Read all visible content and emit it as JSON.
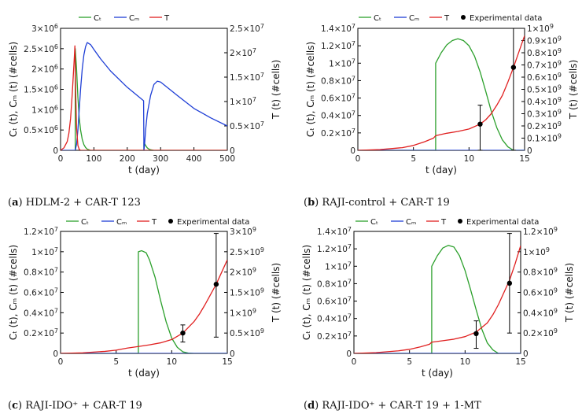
{
  "colors": {
    "ct": "#2ca02c",
    "cm": "#1f3fd6",
    "t": "#e02020",
    "exp": "#000000",
    "axis": "#000000"
  },
  "labels": {
    "xlabel": "t (day)",
    "ylabel_left": "Cₜ (t), Cₘ (t) (#cells)",
    "ylabel_right": "T (t) (#cells)"
  },
  "chart_data": [
    {
      "id": "a",
      "type": "line",
      "caption_letter": "a",
      "caption_text": "HDLM-2 + CAR-T 123",
      "xlabel": "t (day)",
      "ylabel_left": "Cₜ (t), Cₘ (t) (#cells)",
      "ylabel_right": "T (t) (#cells)",
      "xlim": [
        0,
        500
      ],
      "ylim_left": [
        0,
        3000000
      ],
      "ylim_right": [
        0,
        25000000
      ],
      "xticks": [
        0,
        100,
        200,
        300,
        400,
        500
      ],
      "xticklabels": [
        "0",
        "100",
        "200",
        "300",
        "400",
        "500"
      ],
      "yticks_left": [
        0,
        500000,
        1000000,
        1500000,
        2000000,
        2500000,
        3000000
      ],
      "yticklabels_left": [
        "0",
        "0.5×10⁶",
        "1×10⁶",
        "1.5×10⁶",
        "2×10⁶",
        "2.5×10⁶",
        "3×10⁶"
      ],
      "yticks_right": [
        0,
        5000000,
        10000000,
        15000000,
        20000000,
        25000000
      ],
      "yticklabels_right": [
        "0",
        "0.5×10⁷",
        "1×10⁷",
        "1.5×10⁷",
        "2×10⁷",
        "2.5×10⁷"
      ],
      "legend": [
        "Cₜ",
        "Cₘ",
        "T"
      ],
      "series": [
        {
          "name": "Cₜ",
          "axis": "left",
          "color": "ct",
          "x": [
            44,
            44,
            48,
            52,
            56,
            60,
            65,
            70,
            75,
            80,
            90,
            250,
            250,
            255,
            260,
            265,
            270,
            280,
            500
          ],
          "y": [
            0,
            2500000,
            2000000,
            1300000,
            800000,
            500000,
            270000,
            140000,
            70000,
            30000,
            0,
            0,
            200000,
            120000,
            60000,
            30000,
            15000,
            0,
            0
          ]
        },
        {
          "name": "Cₘ",
          "axis": "left",
          "color": "cm",
          "x": [
            0,
            44,
            48,
            52,
            56,
            60,
            65,
            70,
            75,
            80,
            90,
            100,
            120,
            150,
            200,
            249,
            250,
            252,
            255,
            260,
            270,
            280,
            290,
            300,
            350,
            400,
            450,
            500
          ],
          "y": [
            0,
            0,
            150000,
            500000,
            1000000,
            1500000,
            2000000,
            2350000,
            2550000,
            2650000,
            2600000,
            2480000,
            2250000,
            1950000,
            1550000,
            1220000,
            0,
            150000,
            500000,
            900000,
            1350000,
            1620000,
            1700000,
            1680000,
            1350000,
            1030000,
            800000,
            600000
          ]
        },
        {
          "name": "T",
          "axis": "right",
          "color": "t",
          "x": [
            0,
            10,
            20,
            25,
            30,
            35,
            40,
            42,
            43,
            45,
            48,
            52,
            56,
            60,
            70,
            500
          ],
          "y": [
            0,
            500000,
            1800000,
            3500000,
            6500000,
            11500000,
            17500000,
            20000000,
            21400000,
            13000000,
            4500000,
            1000000,
            200000,
            0,
            0,
            0
          ]
        }
      ]
    },
    {
      "id": "b",
      "type": "line",
      "caption_letter": "b",
      "caption_text": "RAJI-control + CAR-T 19",
      "xlabel": "t (day)",
      "ylabel_left": "Cₜ (t), Cₘ (t) (#cells)",
      "ylabel_right": "T (t) (#cells)",
      "xlim": [
        0,
        15
      ],
      "ylim_left": [
        0,
        14000000
      ],
      "ylim_right": [
        0,
        1000000000
      ],
      "xticks": [
        0,
        5,
        10,
        15
      ],
      "xticklabels": [
        "0",
        "5",
        "10",
        "15"
      ],
      "yticks_left": [
        0,
        2000000,
        4000000,
        6000000,
        8000000,
        10000000,
        12000000,
        14000000
      ],
      "yticklabels_left": [
        "0",
        "0.2×10⁷",
        "0.4×10⁷",
        "0.6×10⁷",
        "0.8×10⁷",
        "1×10⁷",
        "1.2×10⁷",
        "1.4×10⁷"
      ],
      "yticks_right": [
        0,
        100000000,
        200000000,
        300000000,
        400000000,
        500000000,
        600000000,
        700000000,
        800000000,
        900000000,
        1000000000
      ],
      "yticklabels_right": [
        "0",
        "0.1×10⁹",
        "0.2×10⁹",
        "0.3×10⁹",
        "0.4×10⁹",
        "0.5×10⁹",
        "0.6×10⁹",
        "0.7×10⁹",
        "0.8×10⁹",
        "0.9×10⁹",
        "1×10⁹"
      ],
      "legend": [
        "Cₜ",
        "Cₘ",
        "T",
        "Experimental data"
      ],
      "series": [
        {
          "name": "Cₜ",
          "axis": "left",
          "color": "ct",
          "x": [
            0,
            7,
            7,
            7.5,
            8,
            8.5,
            9,
            9.5,
            10,
            10.5,
            11,
            11.5,
            12,
            12.5,
            13,
            13.5,
            14,
            15
          ],
          "y": [
            0,
            0,
            10000000,
            11200000,
            12100000,
            12600000,
            12800000,
            12600000,
            12000000,
            10800000,
            9000000,
            6800000,
            4500000,
            2600000,
            1200000,
            400000,
            0,
            0
          ]
        },
        {
          "name": "Cₘ",
          "axis": "left",
          "color": "cm",
          "x": [
            0,
            15
          ],
          "y": [
            0,
            0
          ]
        },
        {
          "name": "T",
          "axis": "right",
          "color": "t",
          "x": [
            0,
            2,
            4,
            5,
            6,
            6.8,
            7,
            8,
            9,
            10,
            11,
            11.5,
            12,
            12.5,
            13,
            13.5,
            14,
            14.5,
            15
          ],
          "y": [
            0,
            6000000,
            22000000,
            40000000,
            70000000,
            100000000,
            120000000,
            140000000,
            155000000,
            175000000,
            215000000,
            250000000,
            300000000,
            370000000,
            450000000,
            560000000,
            680000000,
            810000000,
            940000000
          ]
        }
      ],
      "experimental": [
        {
          "x": 11,
          "y": 215000000,
          "err_low": 0,
          "err_high": 370000000
        },
        {
          "x": 14,
          "y": 680000000,
          "err_low": 0,
          "err_high": 1000000000
        }
      ]
    },
    {
      "id": "c",
      "type": "line",
      "caption_letter": "c",
      "caption_text": "RAJI-IDO⁺ + CAR-T 19",
      "xlabel": "t (day)",
      "ylabel_left": "Cₜ (t), Cₘ (t) (#cells)",
      "ylabel_right": "T (t) (#cells)",
      "xlim": [
        0,
        15
      ],
      "ylim_left": [
        0,
        12000000
      ],
      "ylim_right": [
        0,
        3000000000
      ],
      "xticks": [
        0,
        5,
        10,
        15
      ],
      "xticklabels": [
        "0",
        "5",
        "10",
        "15"
      ],
      "yticks_left": [
        0,
        2000000,
        4000000,
        6000000,
        8000000,
        10000000,
        12000000
      ],
      "yticklabels_left": [
        "0",
        "0.2×10⁷",
        "0.4×10⁷",
        "0.6×10⁷",
        "0.8×10⁷",
        "1×10⁷",
        "1.2×10⁷"
      ],
      "yticks_right": [
        0,
        500000000,
        1000000000,
        1500000000,
        2000000000,
        2500000000,
        3000000000
      ],
      "yticklabels_right": [
        "0",
        "0.5×10⁹",
        "1×10⁹",
        "1.5×10⁹",
        "2×10⁹",
        "2.5×10⁹",
        "3×10⁹"
      ],
      "legend": [
        "Cₜ",
        "Cₘ",
        "T",
        "Experimental data"
      ],
      "series": [
        {
          "name": "Cₜ",
          "axis": "left",
          "color": "ct",
          "x": [
            0,
            7,
            7,
            7.3,
            7.7,
            8,
            8.5,
            9,
            9.5,
            10,
            10.5,
            11,
            11.5,
            12,
            15
          ],
          "y": [
            0,
            0,
            10000000,
            10100000,
            9900000,
            9200000,
            7500000,
            5200000,
            3100000,
            1500000,
            600000,
            150000,
            30000,
            0,
            0
          ]
        },
        {
          "name": "Cₘ",
          "axis": "left",
          "color": "cm",
          "x": [
            0,
            15
          ],
          "y": [
            0,
            0
          ]
        },
        {
          "name": "T",
          "axis": "right",
          "color": "t",
          "x": [
            0,
            2,
            4,
            5,
            6,
            7,
            8,
            9,
            10,
            11,
            12,
            12.5,
            13,
            13.5,
            14,
            14.5,
            15
          ],
          "y": [
            0,
            15000000,
            50000000,
            80000000,
            130000000,
            170000000,
            210000000,
            260000000,
            340000000,
            500000000,
            780000000,
            970000000,
            1200000000,
            1450000000,
            1700000000,
            2000000000,
            2300000000
          ]
        }
      ],
      "experimental": [
        {
          "x": 11,
          "y": 500000000,
          "err_low": 280000000,
          "err_high": 700000000
        },
        {
          "x": 14,
          "y": 1700000000,
          "err_low": 400000000,
          "err_high": 2950000000
        }
      ]
    },
    {
      "id": "d",
      "type": "line",
      "caption_letter": "d",
      "caption_text": "RAJI-IDO⁺ + CAR-T 19 + 1-MT",
      "xlabel": "t (day)",
      "ylabel_left": "Cₜ (t), Cₘ (t) (#cells)",
      "ylabel_right": "T (t) (#cells)",
      "xlim": [
        0,
        15
      ],
      "ylim_left": [
        0,
        14000000
      ],
      "ylim_right": [
        0,
        1200000000
      ],
      "xticks": [
        0,
        5,
        10,
        15
      ],
      "xticklabels": [
        "0",
        "5",
        "10",
        "15"
      ],
      "yticks_left": [
        0,
        2000000,
        4000000,
        6000000,
        8000000,
        10000000,
        12000000,
        14000000
      ],
      "yticklabels_left": [
        "0",
        "0.2×10⁷",
        "0.4×10⁷",
        "0.6×10⁷",
        "0.8×10⁷",
        "1×10⁷",
        "1.2×10⁷",
        "1.4×10⁷"
      ],
      "yticks_right": [
        0,
        200000000,
        400000000,
        600000000,
        800000000,
        1000000000,
        1200000000
      ],
      "yticklabels_right": [
        "0",
        "0.2×10⁹",
        "0.4×10⁹",
        "0.6×10⁹",
        "0.8×10⁹",
        "1×10⁹",
        "1.2×10⁹"
      ],
      "legend": [
        "Cₜ",
        "Cₘ",
        "T",
        "Experimental data"
      ],
      "series": [
        {
          "name": "Cₜ",
          "axis": "left",
          "color": "ct",
          "x": [
            0,
            7,
            7,
            7.5,
            8,
            8.5,
            9,
            9.5,
            10,
            10.5,
            11,
            11.5,
            12,
            12.5,
            13,
            15
          ],
          "y": [
            0,
            0,
            10000000,
            11200000,
            12100000,
            12400000,
            12200000,
            11200000,
            9500000,
            7300000,
            5000000,
            2800000,
            1200000,
            400000,
            0,
            0
          ]
        },
        {
          "name": "Cₘ",
          "axis": "left",
          "color": "cm",
          "x": [
            0,
            15
          ],
          "y": [
            0,
            0
          ]
        },
        {
          "name": "T",
          "axis": "right",
          "color": "t",
          "x": [
            0,
            2,
            4,
            5,
            6,
            6.8,
            7,
            8,
            9,
            10,
            11,
            12,
            12.5,
            13,
            13.5,
            14,
            14.5,
            15
          ],
          "y": [
            0,
            8000000,
            25000000,
            40000000,
            65000000,
            90000000,
            110000000,
            125000000,
            140000000,
            165000000,
            210000000,
            300000000,
            380000000,
            480000000,
            600000000,
            720000000,
            880000000,
            1060000000
          ]
        }
      ],
      "experimental": [
        {
          "x": 11,
          "y": 195000000,
          "err_low": 50000000,
          "err_high": 320000000
        },
        {
          "x": 14,
          "y": 690000000,
          "err_low": 200000000,
          "err_high": 1180000000
        }
      ]
    }
  ]
}
